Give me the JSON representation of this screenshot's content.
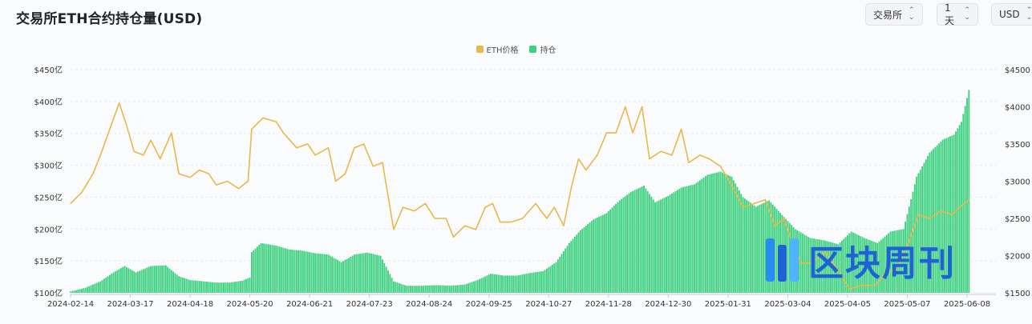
{
  "header": {
    "title": "交易所ETH合约持仓量(USD)",
    "exchange_select": "交易所",
    "interval_select": "1天",
    "currency_select": "USD"
  },
  "watermark": {
    "text": "区块周刊"
  },
  "colors": {
    "price": "#e8b84a",
    "oi": "#3dd17f",
    "accent": "#1e63d6"
  },
  "chart_data": {
    "type": "bar+line",
    "legend_position": "top-center",
    "grid": "horizontal",
    "left_axis": {
      "unit": "亿",
      "min": 100,
      "max": 450,
      "ticks": [
        "$100亿",
        "$150亿",
        "$200亿",
        "$250亿",
        "$300亿",
        "$350亿",
        "$400亿",
        "$450亿"
      ]
    },
    "right_axis": {
      "min": 1500,
      "max": 4500,
      "ticks": [
        "$1500",
        "$2000",
        "$2500",
        "$3000",
        "$3500",
        "$4000",
        "$4500"
      ]
    },
    "x_ticks": [
      "2024-02-14",
      "2024-03-17",
      "2024-04-18",
      "2024-05-20",
      "2024-06-21",
      "2024-07-23",
      "2024-08-24",
      "2024-09-25",
      "2024-10-27",
      "2024-11-28",
      "2024-12-30",
      "2025-01-31",
      "2025-03-04",
      "2025-04-05",
      "2025-05-07",
      "2025-06-08"
    ],
    "series": [
      {
        "name": "ETH价格",
        "type": "line",
        "axis": "right",
        "points": [
          [
            "2024-02-14",
            2700
          ],
          [
            "2024-02-20",
            2850
          ],
          [
            "2024-02-26",
            3100
          ],
          [
            "2024-03-01",
            3350
          ],
          [
            "2024-03-06",
            3700
          ],
          [
            "2024-03-11",
            4050
          ],
          [
            "2024-03-15",
            3750
          ],
          [
            "2024-03-19",
            3400
          ],
          [
            "2024-03-24",
            3350
          ],
          [
            "2024-03-28",
            3550
          ],
          [
            "2024-04-02",
            3300
          ],
          [
            "2024-04-08",
            3650
          ],
          [
            "2024-04-12",
            3100
          ],
          [
            "2024-04-18",
            3050
          ],
          [
            "2024-04-23",
            3150
          ],
          [
            "2024-04-28",
            3100
          ],
          [
            "2024-05-02",
            2950
          ],
          [
            "2024-05-08",
            3000
          ],
          [
            "2024-05-14",
            2900
          ],
          [
            "2024-05-19",
            3000
          ],
          [
            "2024-05-21",
            3700
          ],
          [
            "2024-05-27",
            3850
          ],
          [
            "2024-06-03",
            3800
          ],
          [
            "2024-06-07",
            3650
          ],
          [
            "2024-06-14",
            3450
          ],
          [
            "2024-06-20",
            3500
          ],
          [
            "2024-06-24",
            3350
          ],
          [
            "2024-07-01",
            3450
          ],
          [
            "2024-07-05",
            3000
          ],
          [
            "2024-07-10",
            3100
          ],
          [
            "2024-07-15",
            3450
          ],
          [
            "2024-07-20",
            3500
          ],
          [
            "2024-07-25",
            3200
          ],
          [
            "2024-07-30",
            3250
          ],
          [
            "2024-08-05",
            2350
          ],
          [
            "2024-08-10",
            2650
          ],
          [
            "2024-08-16",
            2600
          ],
          [
            "2024-08-22",
            2700
          ],
          [
            "2024-08-27",
            2500
          ],
          [
            "2024-09-02",
            2500
          ],
          [
            "2024-09-06",
            2250
          ],
          [
            "2024-09-12",
            2400
          ],
          [
            "2024-09-18",
            2350
          ],
          [
            "2024-09-23",
            2650
          ],
          [
            "2024-09-27",
            2700
          ],
          [
            "2024-10-01",
            2450
          ],
          [
            "2024-10-07",
            2450
          ],
          [
            "2024-10-13",
            2500
          ],
          [
            "2024-10-20",
            2700
          ],
          [
            "2024-10-26",
            2500
          ],
          [
            "2024-10-30",
            2650
          ],
          [
            "2024-11-04",
            2400
          ],
          [
            "2024-11-08",
            2900
          ],
          [
            "2024-11-12",
            3300
          ],
          [
            "2024-11-16",
            3150
          ],
          [
            "2024-11-22",
            3350
          ],
          [
            "2024-11-27",
            3650
          ],
          [
            "2024-12-02",
            3650
          ],
          [
            "2024-12-07",
            4000
          ],
          [
            "2024-12-11",
            3650
          ],
          [
            "2024-12-16",
            4000
          ],
          [
            "2024-12-20",
            3300
          ],
          [
            "2024-12-26",
            3400
          ],
          [
            "2025-01-01",
            3350
          ],
          [
            "2025-01-06",
            3700
          ],
          [
            "2025-01-10",
            3250
          ],
          [
            "2025-01-16",
            3350
          ],
          [
            "2025-01-21",
            3300
          ],
          [
            "2025-01-27",
            3200
          ],
          [
            "2025-02-03",
            2900
          ],
          [
            "2025-02-08",
            2650
          ],
          [
            "2025-02-14",
            2700
          ],
          [
            "2025-02-20",
            2750
          ],
          [
            "2025-02-25",
            2400
          ],
          [
            "2025-03-02",
            2500
          ],
          [
            "2025-03-06",
            2200
          ],
          [
            "2025-03-11",
            1900
          ],
          [
            "2025-03-17",
            1900
          ],
          [
            "2025-03-24",
            2050
          ],
          [
            "2025-03-31",
            1800
          ],
          [
            "2025-04-06",
            1550
          ],
          [
            "2025-04-12",
            1600
          ],
          [
            "2025-04-20",
            1600
          ],
          [
            "2025-04-26",
            1800
          ],
          [
            "2025-05-01",
            1800
          ],
          [
            "2025-05-08",
            2200
          ],
          [
            "2025-05-13",
            2550
          ],
          [
            "2025-05-19",
            2500
          ],
          [
            "2025-05-25",
            2600
          ],
          [
            "2025-05-31",
            2550
          ],
          [
            "2025-06-04",
            2650
          ],
          [
            "2025-06-09",
            2750
          ]
        ]
      },
      {
        "name": "持仓",
        "type": "bar",
        "axis": "left",
        "points": [
          [
            "2024-02-14",
            102
          ],
          [
            "2024-02-22",
            108
          ],
          [
            "2024-03-01",
            118
          ],
          [
            "2024-03-08",
            132
          ],
          [
            "2024-03-14",
            142
          ],
          [
            "2024-03-20",
            132
          ],
          [
            "2024-03-28",
            142
          ],
          [
            "2024-04-05",
            143
          ],
          [
            "2024-04-12",
            126
          ],
          [
            "2024-04-18",
            120
          ],
          [
            "2024-04-25",
            118
          ],
          [
            "2024-05-02",
            116
          ],
          [
            "2024-05-09",
            116
          ],
          [
            "2024-05-16",
            119
          ],
          [
            "2024-05-20",
            124
          ],
          [
            "2024-05-21",
            164
          ],
          [
            "2024-05-26",
            178
          ],
          [
            "2024-06-03",
            174
          ],
          [
            "2024-06-10",
            168
          ],
          [
            "2024-06-17",
            166
          ],
          [
            "2024-06-24",
            162
          ],
          [
            "2024-07-01",
            160
          ],
          [
            "2024-07-08",
            148
          ],
          [
            "2024-07-15",
            160
          ],
          [
            "2024-07-22",
            163
          ],
          [
            "2024-07-29",
            158
          ],
          [
            "2024-08-05",
            118
          ],
          [
            "2024-08-12",
            111
          ],
          [
            "2024-08-20",
            111
          ],
          [
            "2024-08-28",
            112
          ],
          [
            "2024-09-05",
            111
          ],
          [
            "2024-09-12",
            113
          ],
          [
            "2024-09-19",
            120
          ],
          [
            "2024-09-26",
            130
          ],
          [
            "2024-10-03",
            127
          ],
          [
            "2024-10-10",
            127
          ],
          [
            "2024-10-17",
            131
          ],
          [
            "2024-10-24",
            134
          ],
          [
            "2024-10-31",
            148
          ],
          [
            "2024-11-07",
            178
          ],
          [
            "2024-11-13",
            198
          ],
          [
            "2024-11-20",
            215
          ],
          [
            "2024-11-27",
            225
          ],
          [
            "2024-12-04",
            245
          ],
          [
            "2024-12-10",
            258
          ],
          [
            "2024-12-17",
            268
          ],
          [
            "2024-12-23",
            242
          ],
          [
            "2024-12-30",
            252
          ],
          [
            "2025-01-06",
            265
          ],
          [
            "2025-01-13",
            270
          ],
          [
            "2025-01-20",
            285
          ],
          [
            "2025-01-27",
            290
          ],
          [
            "2025-02-02",
            282
          ],
          [
            "2025-02-08",
            250
          ],
          [
            "2025-02-15",
            235
          ],
          [
            "2025-02-22",
            245
          ],
          [
            "2025-03-01",
            222
          ],
          [
            "2025-03-08",
            200
          ],
          [
            "2025-03-16",
            186
          ],
          [
            "2025-03-24",
            182
          ],
          [
            "2025-03-31",
            176
          ],
          [
            "2025-04-07",
            196
          ],
          [
            "2025-04-14",
            186
          ],
          [
            "2025-04-21",
            178
          ],
          [
            "2025-04-28",
            196
          ],
          [
            "2025-05-05",
            200
          ],
          [
            "2025-05-12",
            282
          ],
          [
            "2025-05-19",
            320
          ],
          [
            "2025-05-26",
            340
          ],
          [
            "2025-06-01",
            348
          ],
          [
            "2025-06-05",
            368
          ],
          [
            "2025-06-09",
            418
          ]
        ]
      }
    ]
  }
}
